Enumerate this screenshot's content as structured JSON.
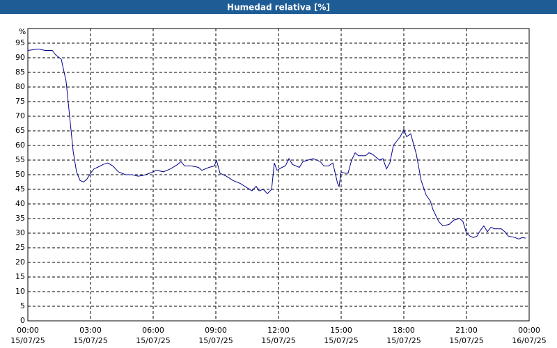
{
  "chart_data": {
    "type": "line",
    "title": "Humedad relativa [%]",
    "ylabel": "%",
    "color": "#00008b",
    "grid": true,
    "xlim": [
      0,
      24
    ],
    "xticks": [
      {
        "value": 0,
        "label": "00:00\n15/07/25"
      },
      {
        "value": 3,
        "label": "03:00\n15/07/25"
      },
      {
        "value": 6,
        "label": "06:00\n15/07/25"
      },
      {
        "value": 9,
        "label": "09:00\n15/07/25"
      },
      {
        "value": 12,
        "label": "12:00\n15/07/25"
      },
      {
        "value": 15,
        "label": "15:00\n15/07/25"
      },
      {
        "value": 18,
        "label": "18:00\n15/07/25"
      },
      {
        "value": 21,
        "label": "21:00\n15/07/25"
      },
      {
        "value": 24,
        "label": "00:00\n16/07/25"
      }
    ],
    "ylim": [
      0,
      100
    ],
    "yticks": [
      0,
      5,
      10,
      15,
      20,
      25,
      30,
      35,
      40,
      45,
      50,
      55,
      60,
      65,
      70,
      75,
      80,
      85,
      90,
      95
    ],
    "x": [
      0,
      0.5,
      0.83,
      1.17,
      1.33,
      1.6,
      1.83,
      2,
      2.17,
      2.33,
      2.5,
      2.67,
      2.83,
      3,
      3.17,
      3.33,
      3.6,
      3.83,
      4.07,
      4.33,
      4.67,
      5,
      5.27,
      5.5,
      5.83,
      6.17,
      6.5,
      6.83,
      7.17,
      7.33,
      7.5,
      7.83,
      8.17,
      8.33,
      8.67,
      8.93,
      9.03,
      9.2,
      9.5,
      9.83,
      10.17,
      10.5,
      10.73,
      10.93,
      11.07,
      11.27,
      11.47,
      11.67,
      11.8,
      11.93,
      12.17,
      12.33,
      12.5,
      12.67,
      13,
      13.17,
      13.67,
      14,
      14.17,
      14.4,
      14.6,
      14.83,
      14.9,
      15,
      15.17,
      15.33,
      15.5,
      15.67,
      15.83,
      16.17,
      16.33,
      16.5,
      16.83,
      17,
      17.17,
      17.33,
      17.5,
      17.83,
      18,
      18.13,
      18.33,
      18.6,
      18.83,
      19.07,
      19.27,
      19.4,
      19.67,
      19.87,
      20.17,
      20.4,
      20.67,
      20.83,
      21,
      21.17,
      21.33,
      21.5,
      21.67,
      21.83,
      22,
      22.17,
      22.33,
      22.67,
      22.83,
      23,
      23.33,
      23.5,
      23.67,
      23.83
    ],
    "values": [
      92.5,
      93,
      92.5,
      92.5,
      91,
      89.5,
      82,
      70,
      58,
      51,
      48,
      47.5,
      48.5,
      50.5,
      52,
      52.5,
      53.5,
      54,
      53,
      51,
      50,
      50,
      49.5,
      49.7,
      50.5,
      51.5,
      51,
      52,
      53.5,
      54.5,
      53,
      53,
      52.5,
      51.5,
      52.5,
      53,
      55,
      50.5,
      49.5,
      48,
      47,
      45.5,
      44.5,
      46,
      44.5,
      45,
      43.5,
      45,
      54,
      51.5,
      52.5,
      53,
      55.5,
      53.5,
      52.5,
      54.5,
      55.5,
      54.5,
      53,
      53,
      54,
      47,
      46,
      51,
      50.5,
      50.5,
      55,
      57.5,
      56.5,
      56.5,
      57.5,
      57,
      55,
      55.5,
      52,
      54,
      60,
      63,
      65.5,
      63,
      64,
      57,
      48,
      43,
      41,
      38,
      34,
      32.5,
      33,
      34.5,
      35,
      34,
      30,
      29,
      28.5,
      29,
      31,
      32.5,
      30.5,
      32,
      31.5,
      31.5,
      30.5,
      29,
      28.5,
      28,
      28.5,
      28.3
    ]
  }
}
